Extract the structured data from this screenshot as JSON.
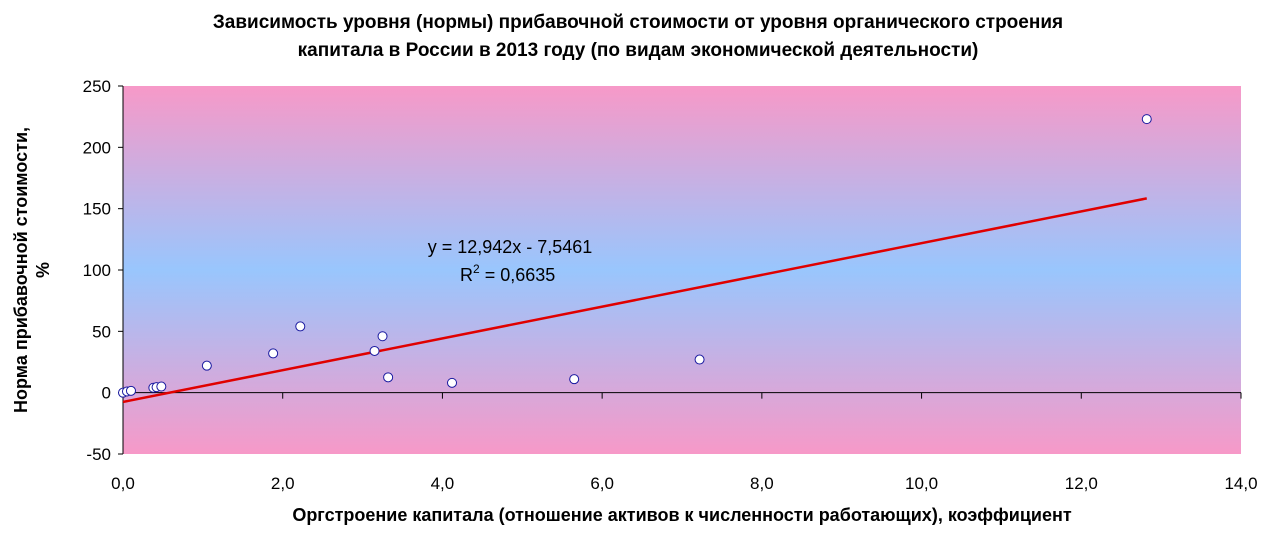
{
  "chart_data": {
    "type": "scatter",
    "title_line1": "Зависимость уровня (нормы)  прибавочной стоимости от уровня органического строения",
    "title_line2": "капитала в России в 2013 году (по видам экономической деятельности)",
    "xlabel": "Оргстроение капитала (отношение активов к численности работающих), коэффициент",
    "ylabel_line1": "Норма прибавочной стоимости,",
    "ylabel_line2": "%",
    "xlim": [
      0,
      14
    ],
    "ylim": [
      -50,
      250
    ],
    "x_ticks": [
      "0,0",
      "2,0",
      "4,0",
      "6,0",
      "8,0",
      "10,0",
      "12,0",
      "14,0"
    ],
    "x_tick_values": [
      0,
      2,
      4,
      6,
      8,
      10,
      12,
      14
    ],
    "y_ticks": [
      "-50",
      "0",
      "50",
      "100",
      "150",
      "200",
      "250"
    ],
    "y_tick_values": [
      -50,
      0,
      50,
      100,
      150,
      200,
      250
    ],
    "points": [
      {
        "x": 0.0,
        "y": 0.0
      },
      {
        "x": 0.05,
        "y": 1.0
      },
      {
        "x": 0.1,
        "y": 1.5
      },
      {
        "x": 0.38,
        "y": 4.0
      },
      {
        "x": 0.42,
        "y": 4.5
      },
      {
        "x": 0.48,
        "y": 5.0
      },
      {
        "x": 1.05,
        "y": 22.0
      },
      {
        "x": 1.88,
        "y": 32.0
      },
      {
        "x": 2.22,
        "y": 54.0
      },
      {
        "x": 3.15,
        "y": 34.0
      },
      {
        "x": 3.25,
        "y": 46.0
      },
      {
        "x": 3.32,
        "y": 12.5
      },
      {
        "x": 4.12,
        "y": 8.0
      },
      {
        "x": 5.65,
        "y": 11.0
      },
      {
        "x": 7.22,
        "y": 27.0
      },
      {
        "x": 12.82,
        "y": 223.0
      }
    ],
    "trendline": {
      "slope": 12.942,
      "intercept": -7.5461,
      "x_range": [
        0,
        12.82
      ],
      "color": "#e00000"
    },
    "equation": "y = 12,942x - 7,5461",
    "r2_prefix": "R",
    "r2_sup": "2",
    "r2_value": " = 0,6635",
    "grid": false,
    "legend": "none",
    "colors": {
      "plot_edge": "#f799c8",
      "plot_center": "#99c6fd",
      "marker_fill": "#ffffff",
      "marker_stroke": "#1a1aa0"
    }
  }
}
